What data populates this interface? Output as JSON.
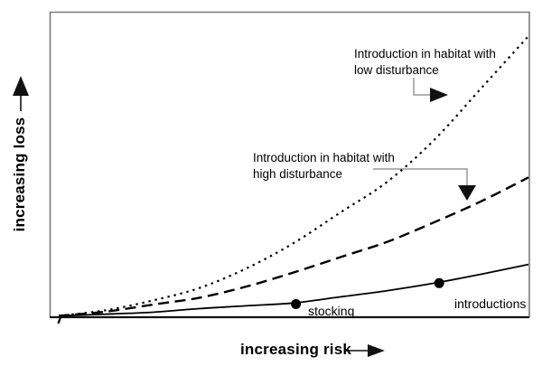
{
  "labels": {
    "y_axis": "increasing loss",
    "x_axis": "increasing risk",
    "annotation_low_line1": "Introduction in habitat with",
    "annotation_low_line2": "low disturbance",
    "annotation_high_line1": "Introduction in habitat with",
    "annotation_high_line2": "high disturbance",
    "marker_stocking": "stocking",
    "marker_introductions": "introductions"
  },
  "colors": {
    "curve": "#000000",
    "axis": "#111111",
    "box_border": "#7a7a7a",
    "leader_line": "#999999",
    "background": "#ffffff"
  },
  "chart_data": {
    "type": "line",
    "title": "",
    "xlabel": "increasing risk",
    "ylabel": "increasing loss",
    "axes": "qualitative (no tick marks, arrows indicate increasing direction)",
    "grid": false,
    "legend_position": "inline annotations",
    "x": [
      0,
      0.1,
      0.2,
      0.3,
      0.4,
      0.5,
      0.6,
      0.7,
      0.8,
      0.9,
      1.0
    ],
    "xlim": [
      0,
      1
    ],
    "ylim": [
      0,
      1
    ],
    "series": [
      {
        "name": "introduction-low-disturbance",
        "label": "Introduction in habitat with low disturbance",
        "style": "dotted",
        "values": [
          0,
          0.02,
          0.055,
          0.1,
          0.17,
          0.26,
          0.37,
          0.48,
          0.63,
          0.815,
          1.0
        ]
      },
      {
        "name": "introduction-high-disturbance",
        "label": "Introduction in habitat with high disturbance",
        "style": "dashed",
        "values": [
          0,
          0.015,
          0.04,
          0.065,
          0.105,
          0.155,
          0.21,
          0.265,
          0.335,
          0.41,
          0.495
        ]
      },
      {
        "name": "stocking-introductions",
        "label": "stocking / introductions",
        "style": "solid",
        "values": [
          0,
          0.006,
          0.013,
          0.026,
          0.036,
          0.046,
          0.068,
          0.09,
          0.117,
          0.149,
          0.184
        ]
      }
    ],
    "markers": [
      {
        "label": "stocking",
        "series": "stocking-introductions",
        "x": 0.505,
        "value": 0.042
      },
      {
        "label": "introductions",
        "series": "stocking-introductions",
        "x": 0.81,
        "value": 0.117
      }
    ],
    "annotations": [
      {
        "text": "Introduction in habitat with low disturbance",
        "points_to": "dotted curve",
        "arrow": "right"
      },
      {
        "text": "Introduction in habitat with high disturbance",
        "points_to": "dashed curve",
        "arrow": "down"
      }
    ]
  }
}
